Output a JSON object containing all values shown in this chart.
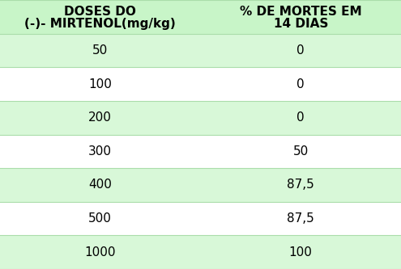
{
  "col1_header_line1": "DOSES DO",
  "col1_header_line2": "(-)- MIRTENOL(mg/kg)",
  "col2_header_line1": "% DE MORTES EM",
  "col2_header_line2": "14 DIAS",
  "rows": [
    [
      "50",
      "0"
    ],
    [
      "100",
      "0"
    ],
    [
      "200",
      "0"
    ],
    [
      "300",
      "50"
    ],
    [
      "400",
      "87,5"
    ],
    [
      "500",
      "87,5"
    ],
    [
      "1000",
      "100"
    ]
  ],
  "header_bg": "#c8f5c8",
  "row_bg_even": "#d8f8d8",
  "row_bg_odd": "#ffffff",
  "text_color": "#000000",
  "header_fontsize": 11,
  "cell_fontsize": 11,
  "border_color": "#aaddaa",
  "fig_bg": "#ffffff"
}
